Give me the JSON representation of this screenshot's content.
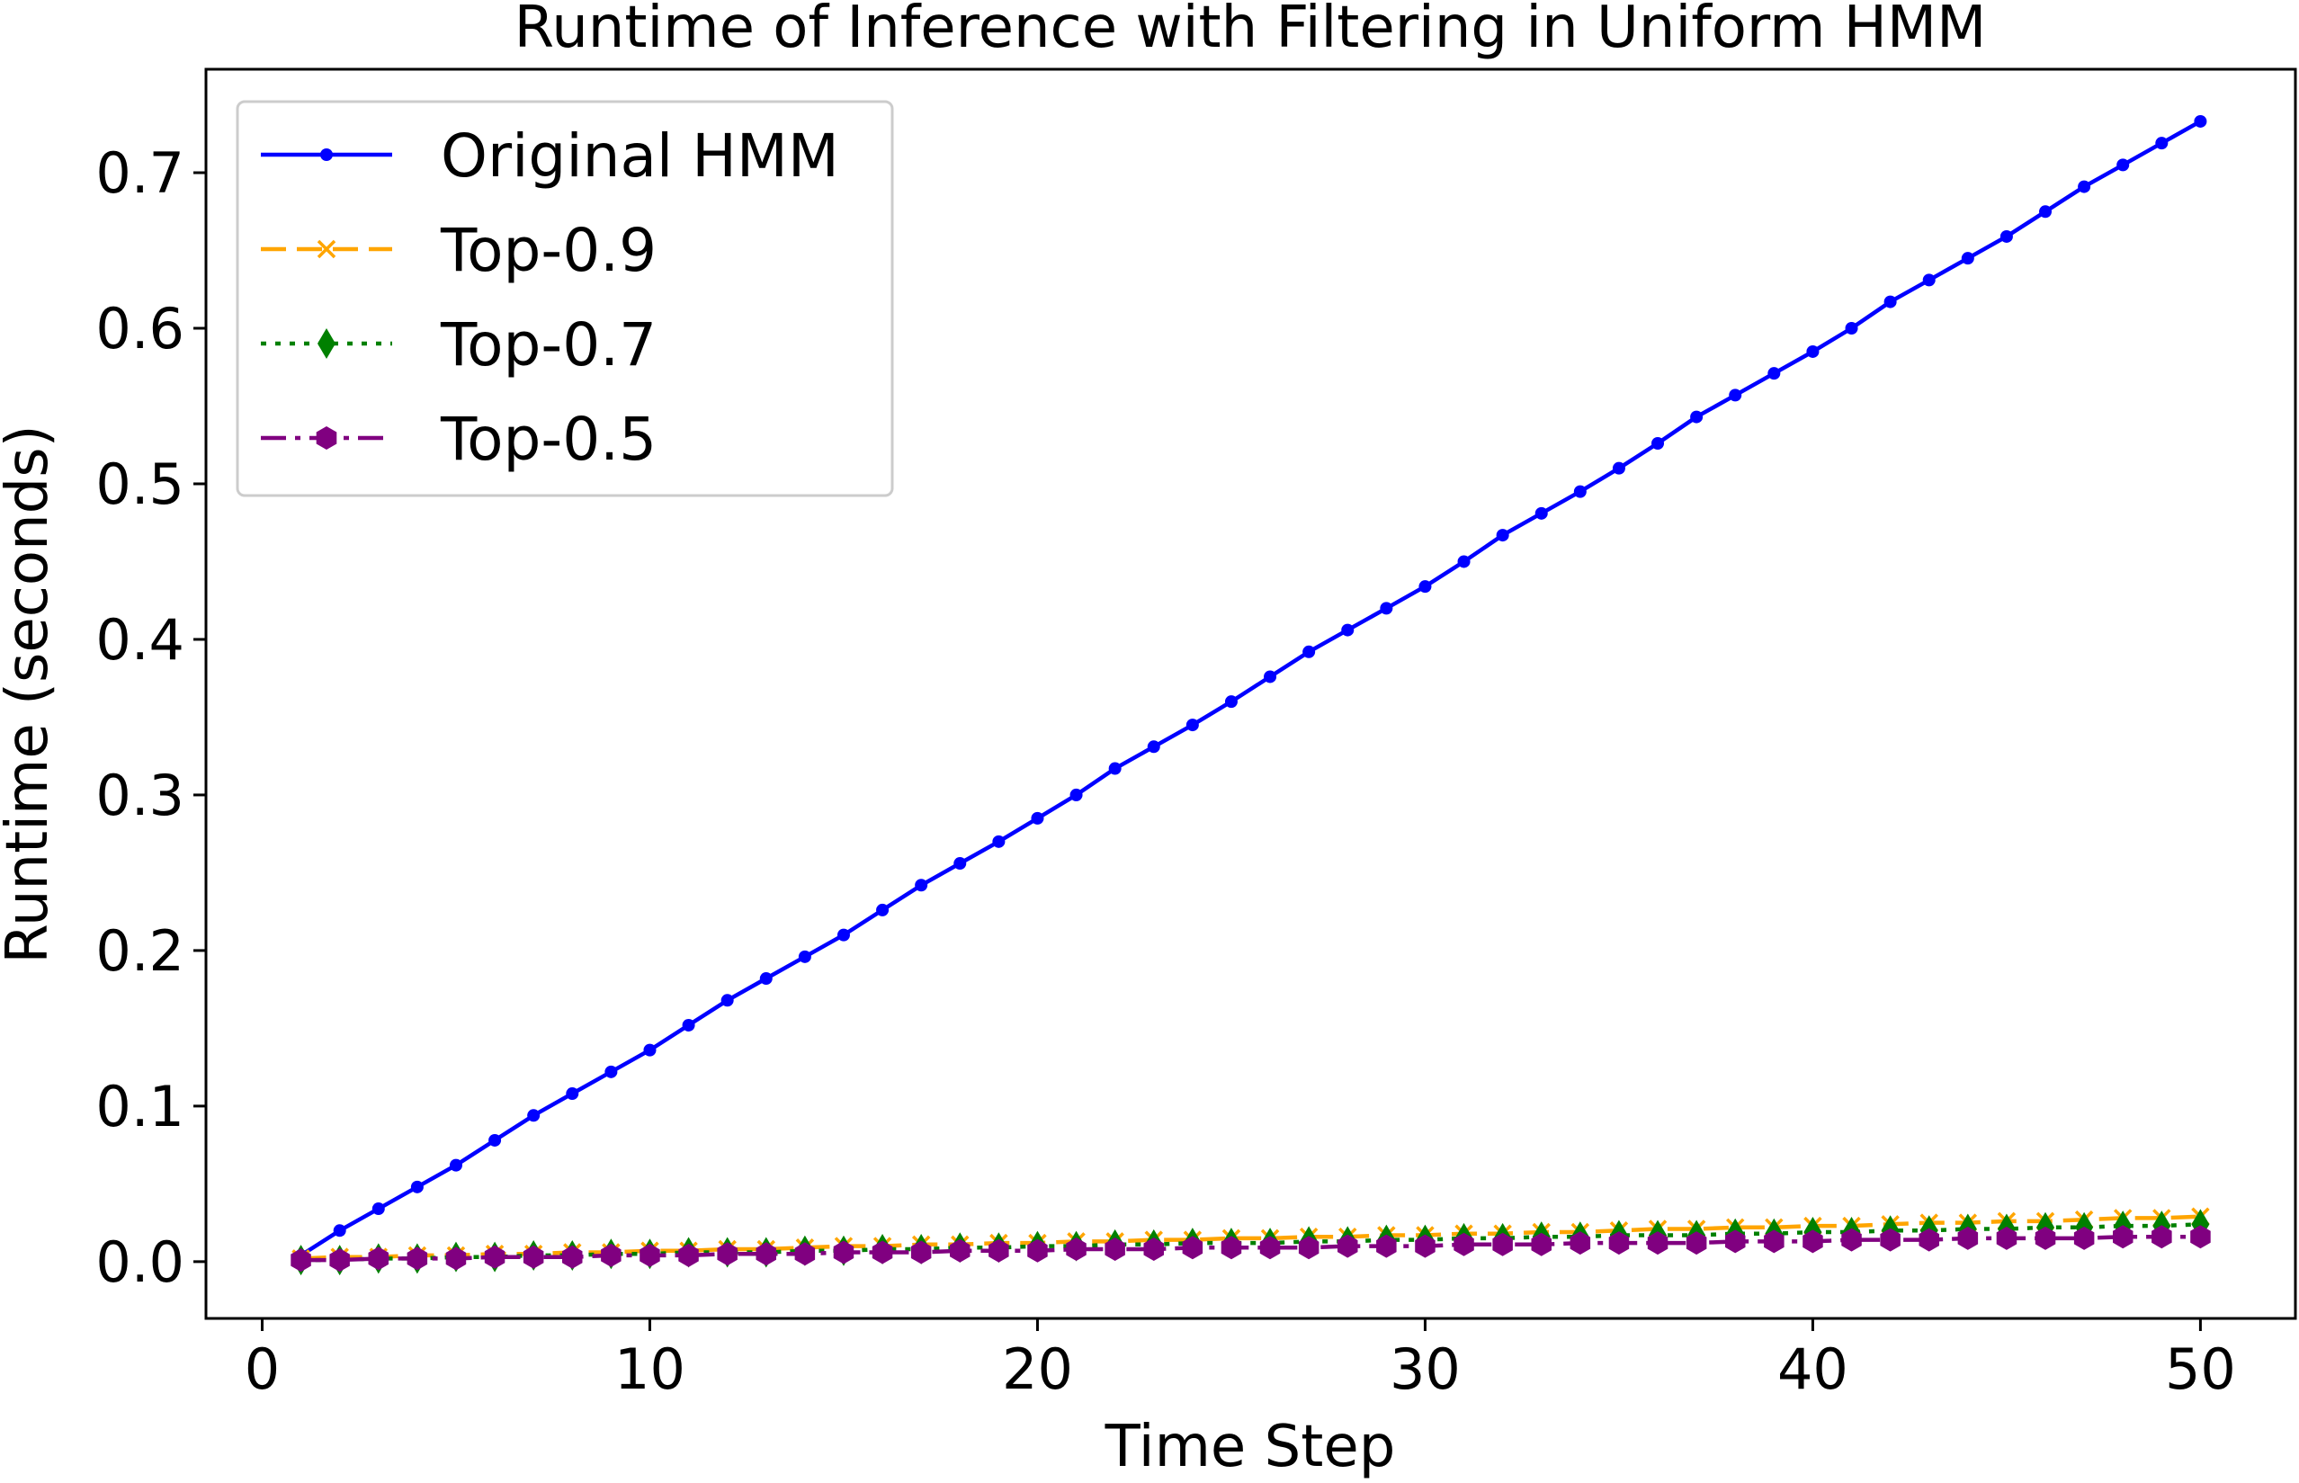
{
  "chart_data": {
    "type": "line",
    "title": "Runtime of Inference with Filtering in Uniform HMM",
    "xlabel": "Time Step",
    "ylabel": "Runtime (seconds)",
    "xlim": [
      -1.45,
      52.45
    ],
    "ylim": [
      -0.0365,
      0.7665
    ],
    "xticks": [
      0,
      10,
      20,
      30,
      40,
      50
    ],
    "yticks": [
      0.0,
      0.1,
      0.2,
      0.3,
      0.4,
      0.5,
      0.6,
      0.7
    ],
    "xtick_labels": [
      "0",
      "10",
      "20",
      "30",
      "40",
      "50"
    ],
    "ytick_labels": [
      "0.0",
      "0.1",
      "0.2",
      "0.3",
      "0.4",
      "0.5",
      "0.6",
      "0.7"
    ],
    "legend_position": "top-left",
    "grid": false,
    "x": [
      1,
      2,
      3,
      4,
      5,
      6,
      7,
      8,
      9,
      10,
      11,
      12,
      13,
      14,
      15,
      16,
      17,
      18,
      19,
      20,
      21,
      22,
      23,
      24,
      25,
      26,
      27,
      28,
      29,
      30,
      31,
      32,
      33,
      34,
      35,
      36,
      37,
      38,
      39,
      40,
      41,
      42,
      43,
      44,
      45,
      46,
      47,
      48,
      49,
      50
    ],
    "series": [
      {
        "name": "Original HMM",
        "color": "#0000ff",
        "linestyle": "solid",
        "marker": "point",
        "values": [
          0.004,
          0.02,
          0.034,
          0.048,
          0.062,
          0.078,
          0.094,
          0.108,
          0.122,
          0.136,
          0.152,
          0.168,
          0.182,
          0.196,
          0.21,
          0.226,
          0.242,
          0.256,
          0.27,
          0.285,
          0.3,
          0.317,
          0.331,
          0.345,
          0.36,
          0.376,
          0.392,
          0.406,
          0.42,
          0.434,
          0.45,
          0.467,
          0.481,
          0.495,
          0.51,
          0.526,
          0.543,
          0.557,
          0.571,
          0.585,
          0.6,
          0.617,
          0.631,
          0.645,
          0.659,
          0.675,
          0.691,
          0.705,
          0.719,
          0.733
        ]
      },
      {
        "name": "Top-0.9",
        "color": "#ffa500",
        "linestyle": "dashed",
        "marker": "x",
        "values": [
          0.002,
          0.003,
          0.003,
          0.004,
          0.004,
          0.005,
          0.005,
          0.006,
          0.006,
          0.007,
          0.007,
          0.008,
          0.008,
          0.009,
          0.01,
          0.01,
          0.011,
          0.011,
          0.012,
          0.012,
          0.013,
          0.013,
          0.014,
          0.014,
          0.015,
          0.015,
          0.016,
          0.016,
          0.017,
          0.017,
          0.018,
          0.018,
          0.019,
          0.019,
          0.02,
          0.021,
          0.021,
          0.022,
          0.022,
          0.023,
          0.023,
          0.024,
          0.025,
          0.025,
          0.026,
          0.026,
          0.027,
          0.028,
          0.028,
          0.029
        ]
      },
      {
        "name": "Top-0.7",
        "color": "#008000",
        "linestyle": "dotted",
        "marker": "diamond",
        "values": [
          0.001,
          0.001,
          0.002,
          0.002,
          0.003,
          0.003,
          0.004,
          0.004,
          0.005,
          0.005,
          0.006,
          0.006,
          0.006,
          0.007,
          0.007,
          0.008,
          0.008,
          0.009,
          0.009,
          0.01,
          0.01,
          0.011,
          0.011,
          0.012,
          0.012,
          0.012,
          0.013,
          0.013,
          0.014,
          0.014,
          0.015,
          0.015,
          0.016,
          0.016,
          0.017,
          0.017,
          0.017,
          0.018,
          0.018,
          0.019,
          0.019,
          0.02,
          0.02,
          0.021,
          0.021,
          0.022,
          0.022,
          0.023,
          0.023,
          0.024
        ]
      },
      {
        "name": "Top-0.5",
        "color": "#800080",
        "linestyle": "dashdot",
        "marker": "hexagon",
        "values": [
          0.001,
          0.001,
          0.002,
          0.002,
          0.002,
          0.003,
          0.003,
          0.003,
          0.004,
          0.004,
          0.004,
          0.005,
          0.005,
          0.005,
          0.006,
          0.006,
          0.006,
          0.007,
          0.007,
          0.007,
          0.008,
          0.008,
          0.008,
          0.009,
          0.009,
          0.009,
          0.009,
          0.01,
          0.01,
          0.01,
          0.011,
          0.011,
          0.011,
          0.012,
          0.012,
          0.012,
          0.012,
          0.013,
          0.013,
          0.013,
          0.014,
          0.014,
          0.014,
          0.015,
          0.015,
          0.015,
          0.015,
          0.016,
          0.016,
          0.016
        ]
      }
    ]
  }
}
